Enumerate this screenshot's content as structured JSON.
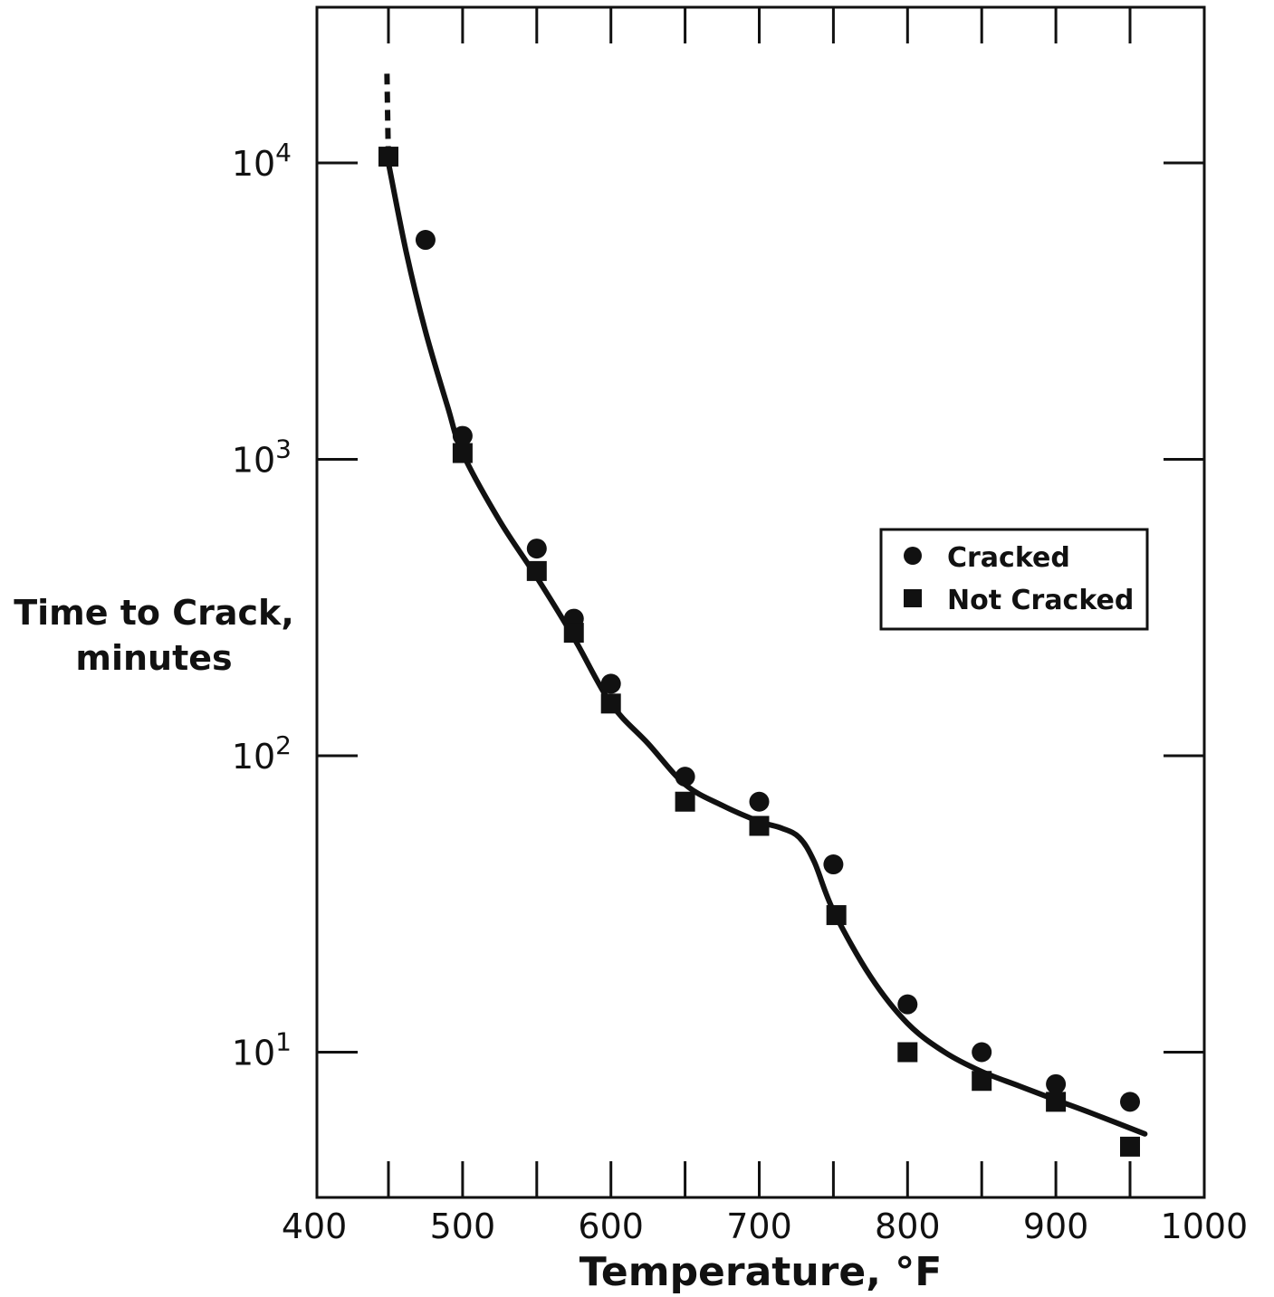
{
  "chart_data": {
    "type": "scatter",
    "title": "",
    "xlabel": "Temperature, °F",
    "ylabel": [
      "Time to Crack,",
      "minutes"
    ],
    "xlim": [
      400,
      1000
    ],
    "ylim": [
      4,
      31623
    ],
    "yscale": "log",
    "x_ticks": [
      "400",
      "500",
      "600",
      "700",
      "800",
      "900",
      "1000"
    ],
    "y_ticks": [
      {
        "value": 10000,
        "base": "10",
        "exp": "4"
      },
      {
        "value": 1000,
        "base": "10",
        "exp": "3"
      },
      {
        "value": 100,
        "base": "10",
        "exp": "2"
      },
      {
        "value": 10,
        "base": "10",
        "exp": "1"
      }
    ],
    "legend": {
      "position": "right-middle",
      "entries": [
        {
          "label": "Cracked",
          "marker": "circle"
        },
        {
          "label": "Not Cracked",
          "marker": "square"
        }
      ]
    },
    "series": [
      {
        "name": "Cracked",
        "marker": "circle",
        "points": [
          [
            475,
            5500
          ],
          [
            500,
            1200
          ],
          [
            550,
            500
          ],
          [
            575,
            290
          ],
          [
            600,
            175
          ],
          [
            650,
            85
          ],
          [
            700,
            70
          ],
          [
            750,
            43
          ],
          [
            800,
            14.5
          ],
          [
            850,
            10
          ],
          [
            900,
            7.8
          ],
          [
            950,
            6.8
          ]
        ]
      },
      {
        "name": "Not Cracked",
        "marker": "square",
        "points": [
          [
            450,
            10500
          ],
          [
            500,
            1050
          ],
          [
            550,
            420
          ],
          [
            575,
            260
          ],
          [
            600,
            150
          ],
          [
            650,
            70
          ],
          [
            700,
            58
          ],
          [
            752,
            29
          ],
          [
            800,
            10
          ],
          [
            850,
            8
          ],
          [
            900,
            6.8
          ],
          [
            950,
            4.8
          ]
        ]
      }
    ],
    "curve": {
      "style": "solid",
      "points": [
        [
          450,
          10000
        ],
        [
          462,
          5000
        ],
        [
          475,
          2700
        ],
        [
          490,
          1500
        ],
        [
          500,
          1050
        ],
        [
          525,
          620
        ],
        [
          550,
          400
        ],
        [
          575,
          250
        ],
        [
          600,
          150
        ],
        [
          625,
          110
        ],
        [
          650,
          80
        ],
        [
          675,
          68
        ],
        [
          700,
          60
        ],
        [
          715,
          57
        ],
        [
          727,
          53
        ],
        [
          737,
          44
        ],
        [
          750,
          30
        ],
        [
          775,
          18
        ],
        [
          800,
          12.5
        ],
        [
          825,
          10
        ],
        [
          850,
          8.6
        ],
        [
          875,
          7.7
        ],
        [
          900,
          6.9
        ],
        [
          925,
          6.2
        ],
        [
          960,
          5.3
        ]
      ]
    },
    "curve_extension": {
      "style": "dashed",
      "points": [
        [
          449,
          20000
        ],
        [
          449.5,
          14000
        ],
        [
          450,
          10000
        ]
      ]
    }
  }
}
